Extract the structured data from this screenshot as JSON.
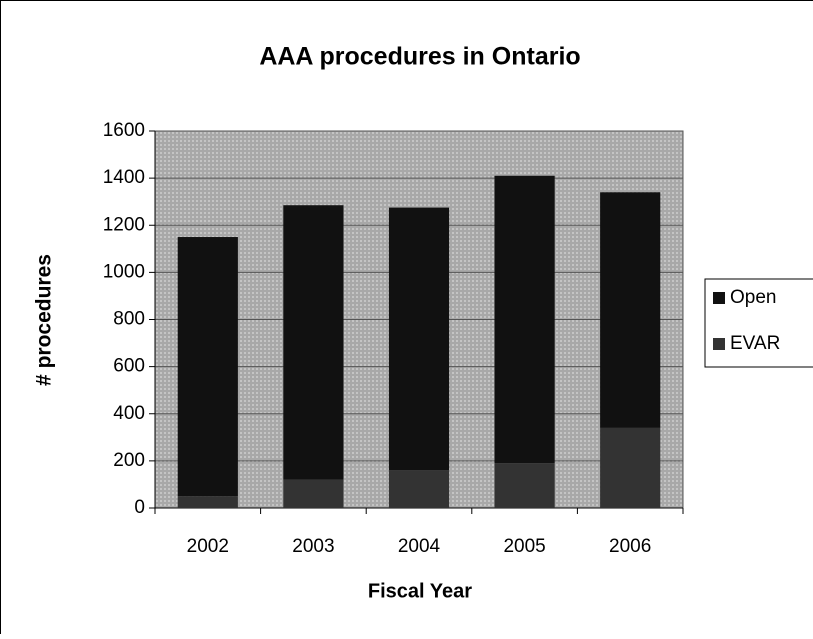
{
  "chart_data": {
    "type": "stacked_bar",
    "title": "AAA procedures in Ontario",
    "x_label": "Fiscal Year",
    "y_label": "# procedures",
    "categories": [
      "2002",
      "2003",
      "2004",
      "2005",
      "2006"
    ],
    "series": [
      {
        "name": "Open",
        "color": "#111111",
        "values": [
          1100,
          1165,
          1115,
          1220,
          1000
        ]
      },
      {
        "name": "EVAR",
        "color": "#333333",
        "values": [
          50,
          120,
          160,
          190,
          340
        ]
      }
    ],
    "ylim": [
      0,
      1600
    ],
    "yticks": [
      0,
      200,
      400,
      600,
      800,
      1000,
      1200,
      1400,
      1600
    ],
    "grid": true,
    "legend": "right"
  }
}
